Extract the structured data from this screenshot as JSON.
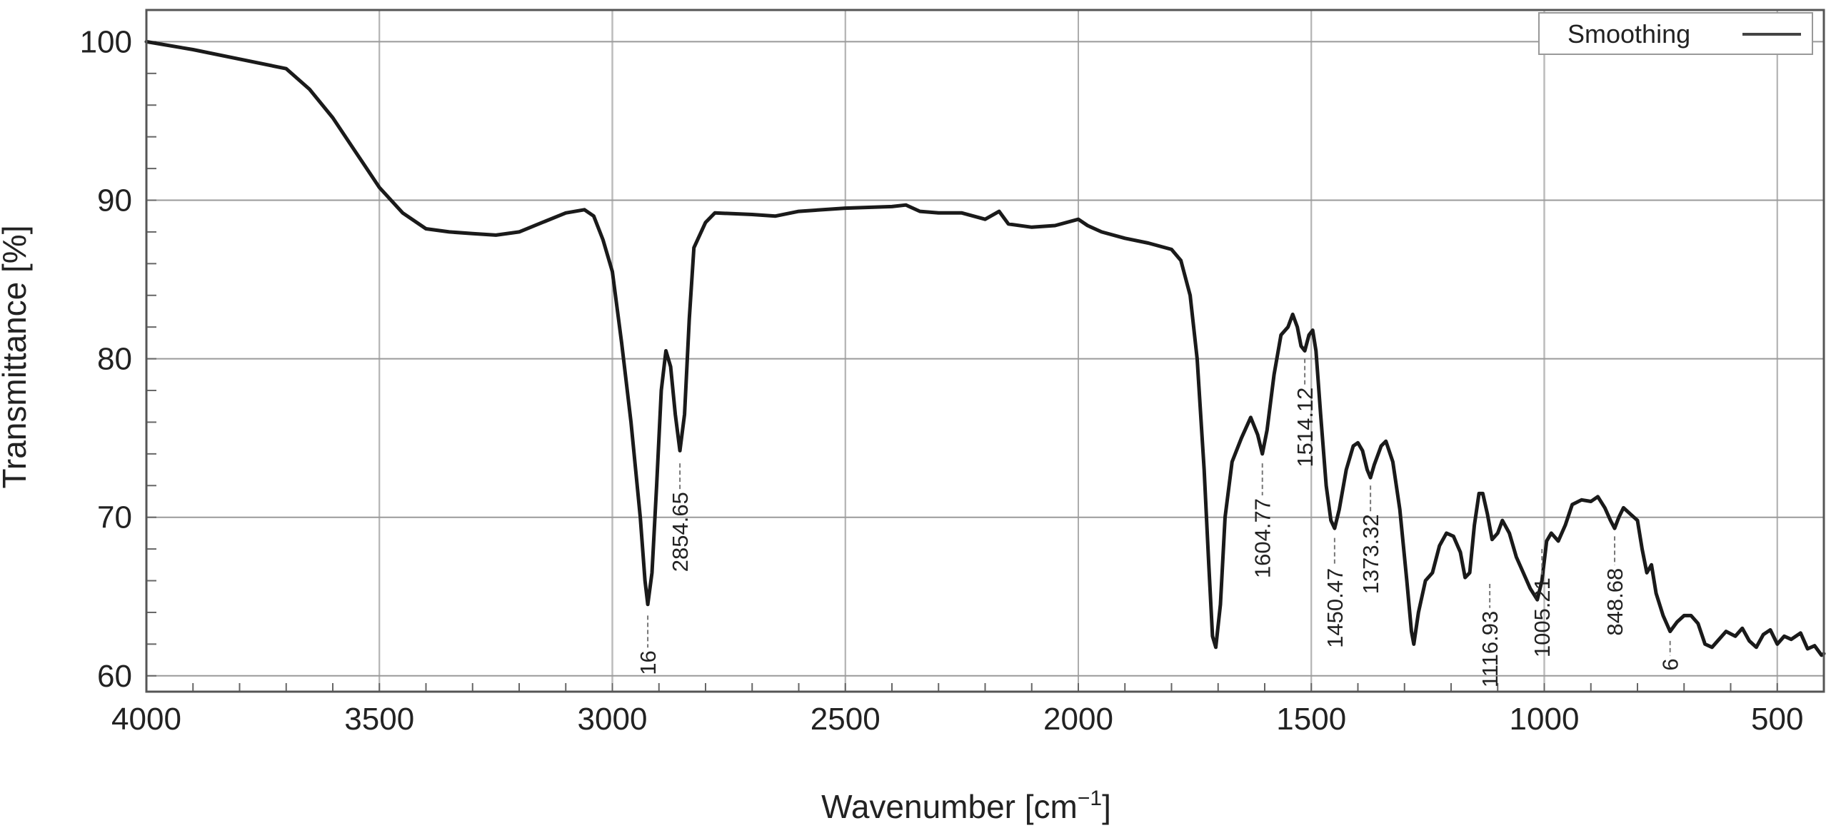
{
  "chart_data": {
    "type": "line",
    "xlabel": "Wavenumber [cm",
    "xlabel_sup": "−1",
    "xlabel_end": "]",
    "ylabel": "Transmittance [%]",
    "xlim": [
      4000,
      400
    ],
    "ylim": [
      59,
      102
    ],
    "x_reversed": true,
    "grid": true,
    "x_ticks": [
      4000,
      3500,
      3000,
      2500,
      2000,
      1500,
      1000,
      500
    ],
    "y_ticks": [
      60,
      70,
      80,
      90,
      100
    ],
    "legend": {
      "position": "top-right",
      "entries": [
        "Smoothing"
      ]
    },
    "series": [
      {
        "name": "Smoothing",
        "color": "#1a1a1a",
        "points": [
          [
            4000,
            100
          ],
          [
            3900,
            99.5
          ],
          [
            3800,
            98.9
          ],
          [
            3700,
            98.3
          ],
          [
            3650,
            97.0
          ],
          [
            3600,
            95.2
          ],
          [
            3550,
            93.0
          ],
          [
            3500,
            90.8
          ],
          [
            3450,
            89.2
          ],
          [
            3400,
            88.2
          ],
          [
            3350,
            88.0
          ],
          [
            3300,
            87.9
          ],
          [
            3250,
            87.8
          ],
          [
            3200,
            88.0
          ],
          [
            3150,
            88.6
          ],
          [
            3100,
            89.2
          ],
          [
            3060,
            89.4
          ],
          [
            3040,
            89.0
          ],
          [
            3020,
            87.5
          ],
          [
            3000,
            85.5
          ],
          [
            2980,
            81.0
          ],
          [
            2960,
            76.0
          ],
          [
            2940,
            70.0
          ],
          [
            2930,
            66.0
          ],
          [
            2924,
            64.5
          ],
          [
            2915,
            66.5
          ],
          [
            2905,
            72.0
          ],
          [
            2895,
            78.0
          ],
          [
            2885,
            80.5
          ],
          [
            2875,
            79.5
          ],
          [
            2865,
            76.5
          ],
          [
            2855,
            74.2
          ],
          [
            2845,
            76.5
          ],
          [
            2835,
            82.5
          ],
          [
            2825,
            87.0
          ],
          [
            2800,
            88.6
          ],
          [
            2780,
            89.2
          ],
          [
            2700,
            89.1
          ],
          [
            2650,
            89.0
          ],
          [
            2600,
            89.3
          ],
          [
            2500,
            89.5
          ],
          [
            2400,
            89.6
          ],
          [
            2370,
            89.7
          ],
          [
            2340,
            89.3
          ],
          [
            2300,
            89.2
          ],
          [
            2250,
            89.2
          ],
          [
            2200,
            88.8
          ],
          [
            2170,
            89.3
          ],
          [
            2150,
            88.5
          ],
          [
            2100,
            88.3
          ],
          [
            2050,
            88.4
          ],
          [
            2000,
            88.8
          ],
          [
            1980,
            88.4
          ],
          [
            1950,
            88.0
          ],
          [
            1900,
            87.6
          ],
          [
            1850,
            87.3
          ],
          [
            1800,
            86.9
          ],
          [
            1780,
            86.2
          ],
          [
            1760,
            84.0
          ],
          [
            1745,
            80.0
          ],
          [
            1730,
            73.0
          ],
          [
            1720,
            67.0
          ],
          [
            1712,
            62.5
          ],
          [
            1705,
            61.8
          ],
          [
            1695,
            64.5
          ],
          [
            1685,
            70.0
          ],
          [
            1670,
            73.5
          ],
          [
            1650,
            75.0
          ],
          [
            1630,
            76.3
          ],
          [
            1615,
            75.2
          ],
          [
            1605,
            74.0
          ],
          [
            1595,
            75.5
          ],
          [
            1580,
            79.0
          ],
          [
            1565,
            81.5
          ],
          [
            1550,
            82.0
          ],
          [
            1540,
            82.8
          ],
          [
            1530,
            82.0
          ],
          [
            1522,
            80.8
          ],
          [
            1514,
            80.5
          ],
          [
            1505,
            81.5
          ],
          [
            1497,
            81.8
          ],
          [
            1490,
            80.5
          ],
          [
            1480,
            76.5
          ],
          [
            1468,
            72.0
          ],
          [
            1458,
            69.8
          ],
          [
            1450,
            69.3
          ],
          [
            1440,
            70.5
          ],
          [
            1425,
            73.0
          ],
          [
            1410,
            74.5
          ],
          [
            1400,
            74.7
          ],
          [
            1390,
            74.2
          ],
          [
            1380,
            73.0
          ],
          [
            1373,
            72.5
          ],
          [
            1365,
            73.3
          ],
          [
            1350,
            74.5
          ],
          [
            1340,
            74.8
          ],
          [
            1325,
            73.5
          ],
          [
            1310,
            70.5
          ],
          [
            1295,
            66.0
          ],
          [
            1285,
            62.8
          ],
          [
            1280,
            62.0
          ],
          [
            1270,
            64.0
          ],
          [
            1255,
            66.0
          ],
          [
            1240,
            66.5
          ],
          [
            1225,
            68.2
          ],
          [
            1210,
            69.0
          ],
          [
            1195,
            68.8
          ],
          [
            1180,
            67.8
          ],
          [
            1170,
            66.2
          ],
          [
            1160,
            66.5
          ],
          [
            1150,
            69.5
          ],
          [
            1140,
            71.5
          ],
          [
            1132,
            71.5
          ],
          [
            1122,
            70.2
          ],
          [
            1112,
            68.6
          ],
          [
            1100,
            69.0
          ],
          [
            1090,
            69.8
          ],
          [
            1075,
            69.0
          ],
          [
            1060,
            67.5
          ],
          [
            1045,
            66.5
          ],
          [
            1030,
            65.5
          ],
          [
            1015,
            64.8
          ],
          [
            1005,
            66.0
          ],
          [
            995,
            68.5
          ],
          [
            985,
            69.0
          ],
          [
            970,
            68.5
          ],
          [
            955,
            69.5
          ],
          [
            940,
            70.8
          ],
          [
            920,
            71.1
          ],
          [
            900,
            71.0
          ],
          [
            885,
            71.3
          ],
          [
            870,
            70.6
          ],
          [
            858,
            69.8
          ],
          [
            849,
            69.3
          ],
          [
            840,
            70.0
          ],
          [
            830,
            70.6
          ],
          [
            815,
            70.2
          ],
          [
            800,
            69.8
          ],
          [
            790,
            68.0
          ],
          [
            780,
            66.5
          ],
          [
            770,
            67.0
          ],
          [
            760,
            65.2
          ],
          [
            745,
            63.8
          ],
          [
            730,
            62.8
          ],
          [
            715,
            63.4
          ],
          [
            700,
            63.8
          ],
          [
            685,
            63.8
          ],
          [
            670,
            63.3
          ],
          [
            655,
            62.0
          ],
          [
            640,
            61.8
          ],
          [
            625,
            62.3
          ],
          [
            610,
            62.8
          ],
          [
            590,
            62.5
          ],
          [
            575,
            63.0
          ],
          [
            560,
            62.2
          ],
          [
            545,
            61.8
          ],
          [
            530,
            62.6
          ],
          [
            515,
            62.9
          ],
          [
            500,
            62.0
          ],
          [
            485,
            62.5
          ],
          [
            470,
            62.3
          ],
          [
            450,
            62.7
          ],
          [
            435,
            61.7
          ],
          [
            420,
            61.9
          ],
          [
            405,
            61.3
          ],
          [
            400,
            61.4
          ]
        ]
      }
    ],
    "peak_labels": [
      {
        "text": "16",
        "x": 2924,
        "y_top": 63.8,
        "y_text": 61.6
      },
      {
        "text": "2854.65",
        "x": 2855,
        "y_top": 73.4,
        "y_text": 71.6
      },
      {
        "text": "1604.77",
        "x": 1605,
        "y_top": 73.4,
        "y_text": 71.2
      },
      {
        "text": "1514.12",
        "x": 1514,
        "y_top": 80.0,
        "y_text": 78.2
      },
      {
        "text": "1450.47",
        "x": 1450,
        "y_top": 68.7,
        "y_text": 66.8
      },
      {
        "text": "1373.32",
        "x": 1373,
        "y_top": 72.0,
        "y_text": 70.2
      },
      {
        "text": "1116.93",
        "x": 1117,
        "y_top": 65.8,
        "y_text": 64.1
      },
      {
        "text": "1005.21",
        "x": 1005,
        "y_top": 68.0,
        "y_text": 66.2
      },
      {
        "text": "848.68",
        "x": 849,
        "y_top": 68.8,
        "y_text": 66.8
      },
      {
        "text": "6",
        "x": 730,
        "y_top": 62.2,
        "y_text": 61.1
      }
    ]
  }
}
